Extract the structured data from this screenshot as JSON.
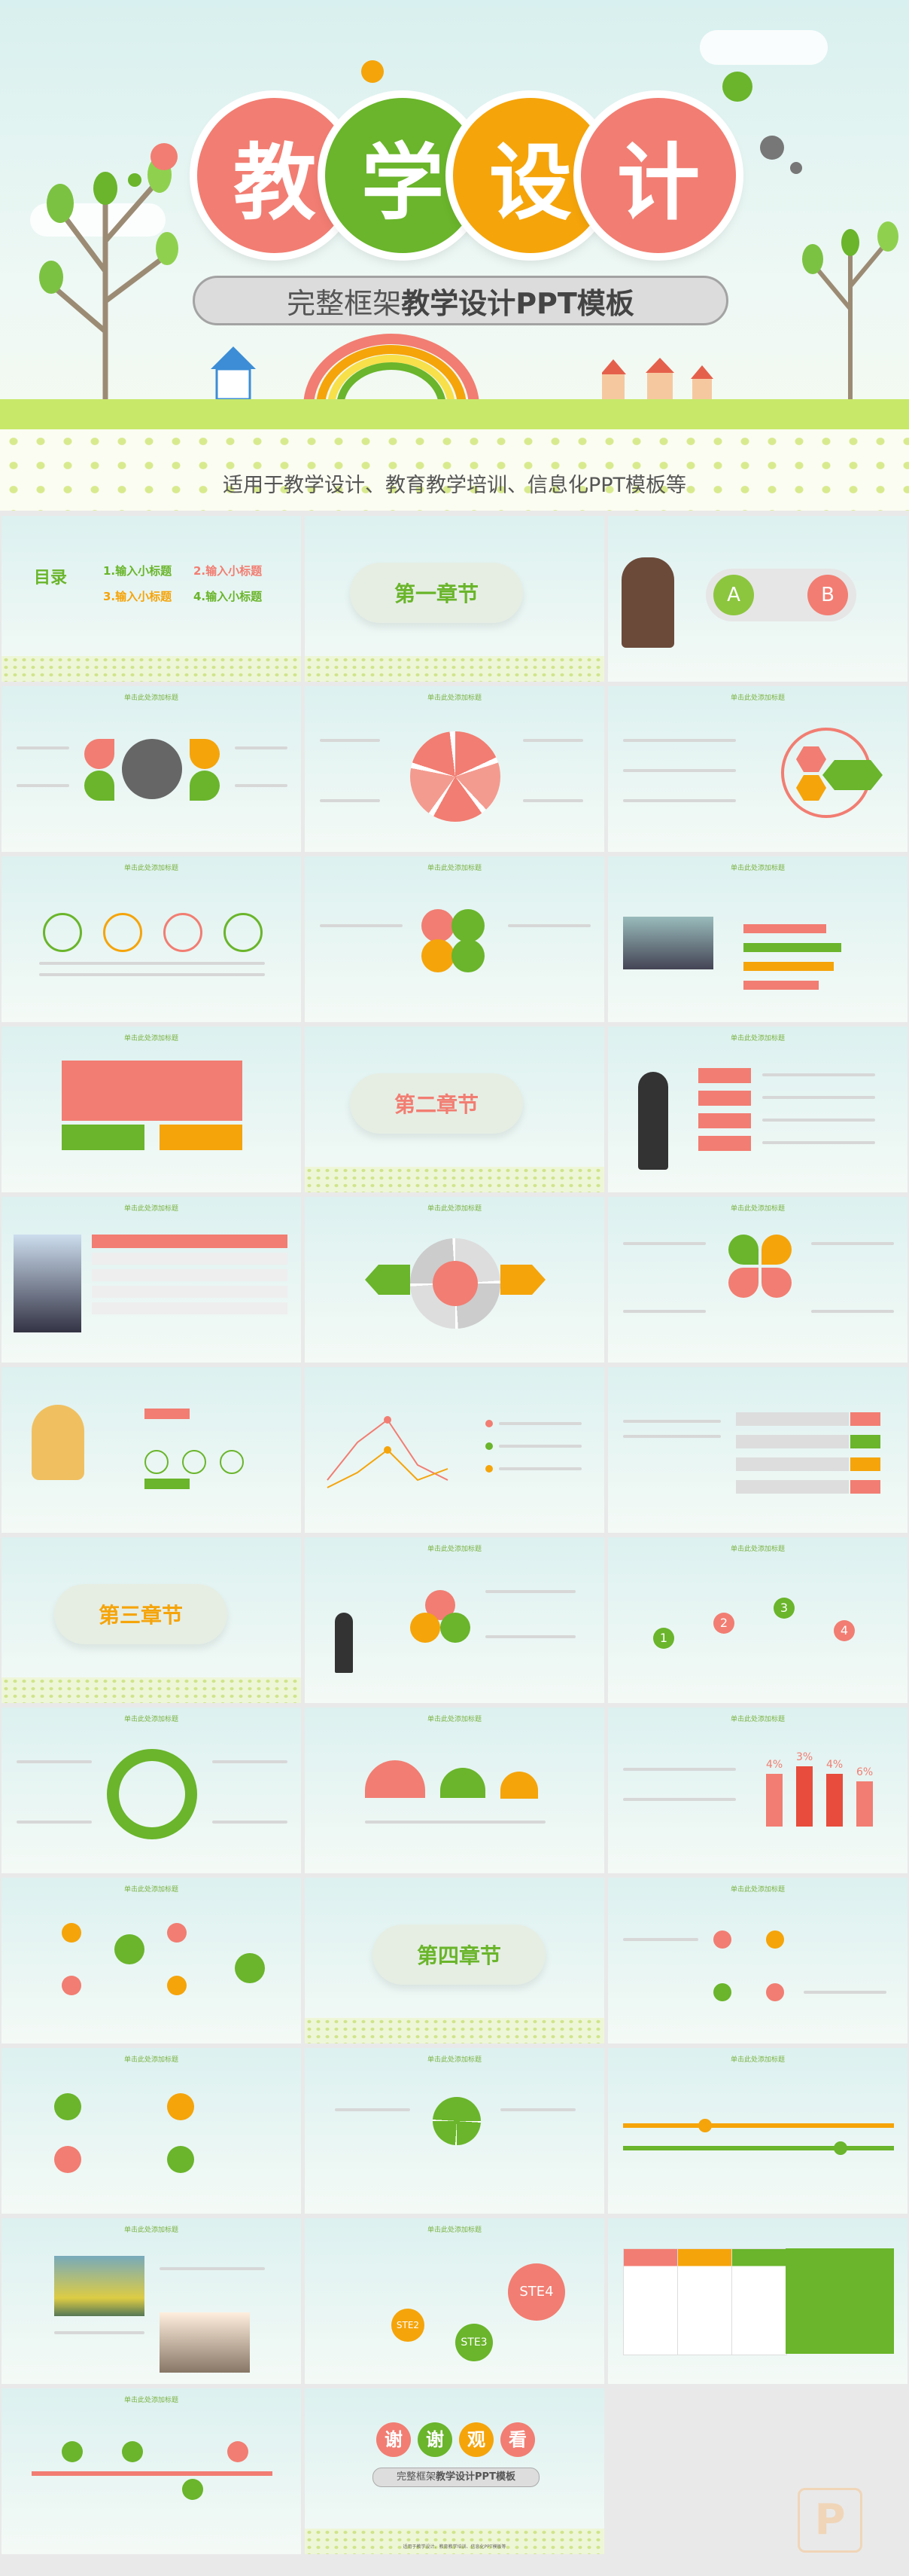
{
  "hero": {
    "title_chars": [
      "教",
      "学",
      "设",
      "计"
    ],
    "title_colors": [
      "#f27d72",
      "#6ab52b",
      "#f5a40a",
      "#f27d72"
    ],
    "subtitle_light": "完整框架",
    "subtitle_bold": "教学设计PPT模板",
    "caption": "适用于教学设计、教育教学培训、信息化PPT模板等"
  },
  "slides": {
    "header_text": "单击此处添加标题",
    "toc": {
      "title": "目录",
      "items": [
        "1.输入小标题",
        "2.输入小标题",
        "3.输入小标题",
        "4.输入小标题"
      ]
    },
    "chapter1": "第一章节",
    "chapter2": "第二章节",
    "chapter3": "第三章节",
    "chapter4": "第四章节",
    "ab": [
      "A",
      "B"
    ],
    "bar_percents": [
      "4%",
      "3%",
      "4%",
      "6%"
    ],
    "ste": [
      "STE2",
      "STE3",
      "STE4"
    ],
    "thanks_chars": [
      "谢",
      "谢",
      "观",
      "看"
    ],
    "thanks_sub_light": "完整框架",
    "thanks_sub_bold": "教学设计PPT模板",
    "thanks_caption": "适用于教学设计、教育教学培训、信息化PPT模板等",
    "numbers": [
      "1",
      "2",
      "3",
      "4"
    ]
  },
  "colors": {
    "coral": "#f27d72",
    "green": "#6ab52b",
    "orange": "#f5a40a",
    "gray": "#cfcfcf"
  },
  "logo_glyph": "P"
}
